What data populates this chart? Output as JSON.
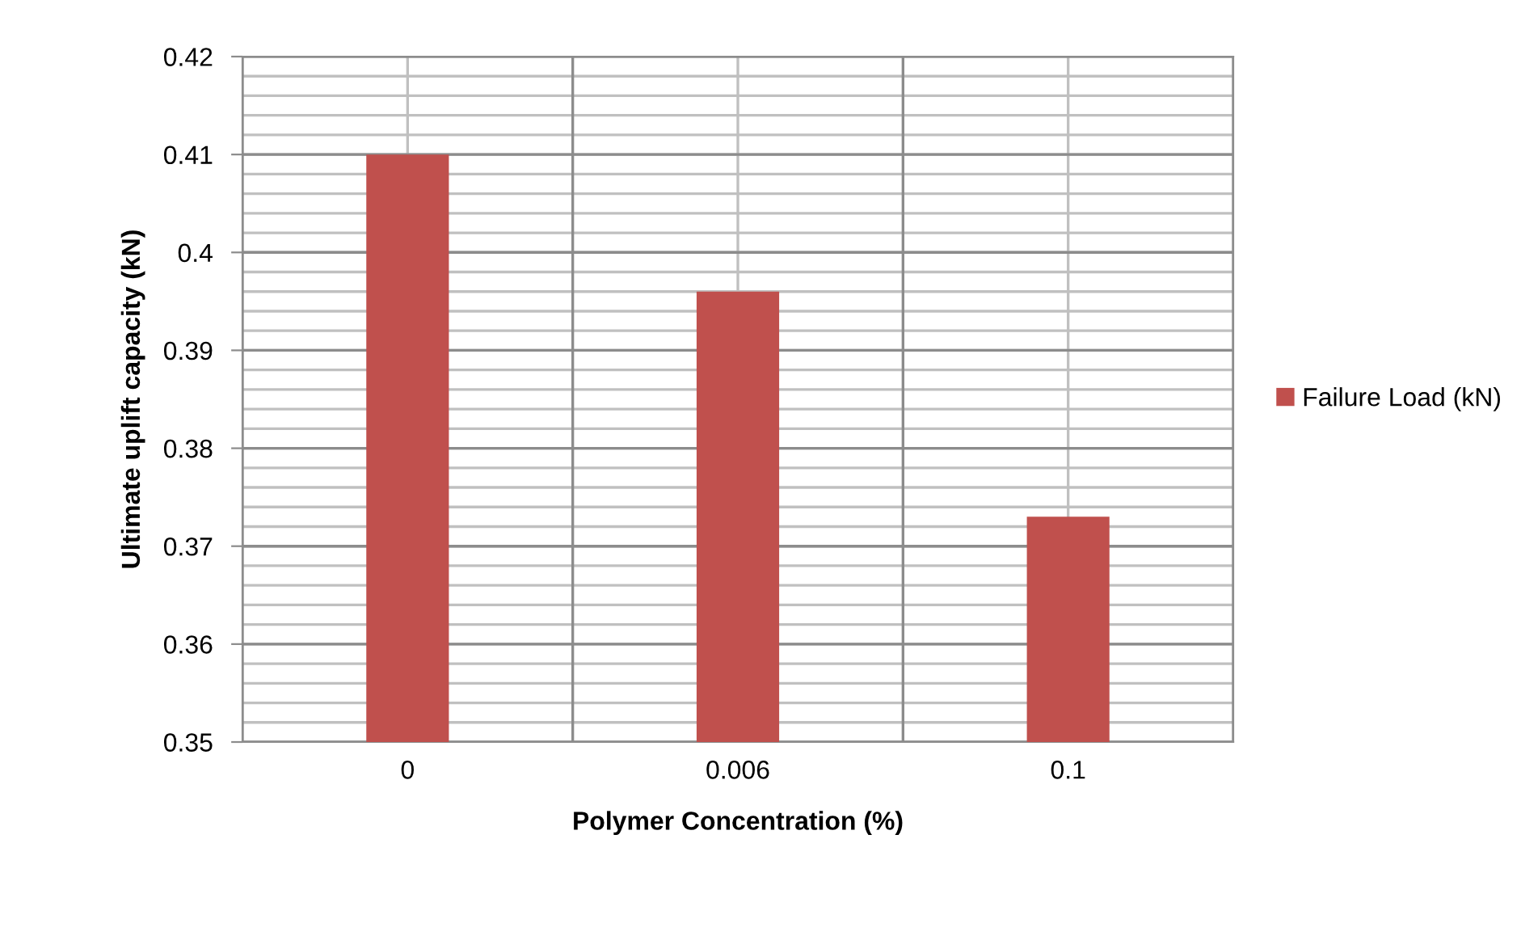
{
  "chart_data": {
    "type": "bar",
    "xlabel": "Polymer Concentration (%)",
    "ylabel": "Ultimate uplift capacity (kN)",
    "categories": [
      "0",
      "0.006",
      "0.1"
    ],
    "series": [
      {
        "name": "Failure Load (kN)",
        "color": "#c0504d",
        "values": [
          0.41,
          0.396,
          0.373
        ]
      }
    ],
    "ylim": [
      0.35,
      0.42
    ],
    "yticks": [
      0.35,
      0.36,
      0.37,
      0.38,
      0.39,
      0.4,
      0.41,
      0.42
    ],
    "grid": true,
    "legend": "right"
  }
}
